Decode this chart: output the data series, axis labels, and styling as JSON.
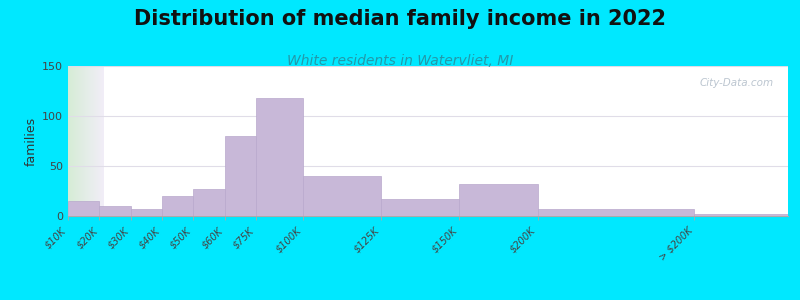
{
  "title": "Distribution of median family income in 2022",
  "subtitle": "White residents in Watervliet, MI",
  "ylabel": "families",
  "background_outer": "#00e8ff",
  "background_inner_left": "#d4ecd4",
  "background_inner_right": "#f2eef8",
  "bar_color": "#c8b8d8",
  "bar_edge_color": "#b8a8cc",
  "categories": [
    "$10K",
    "$20K",
    "$30K",
    "$40K",
    "$50K",
    "$60K",
    "$75K",
    "$100K",
    "$125K",
    "$150K",
    "$200K",
    "> $200K"
  ],
  "values": [
    15,
    10,
    7,
    20,
    27,
    80,
    118,
    40,
    17,
    32,
    7,
    2
  ],
  "ylim": [
    0,
    150
  ],
  "yticks": [
    0,
    50,
    100,
    150
  ],
  "title_fontsize": 15,
  "subtitle_fontsize": 10,
  "title_color": "#111111",
  "subtitle_color": "#2299aa",
  "watermark_text": "City-Data.com",
  "watermark_color": "#b0bcc8",
  "grid_color": "#e0dde8",
  "spine_color": "#aaaaaa"
}
